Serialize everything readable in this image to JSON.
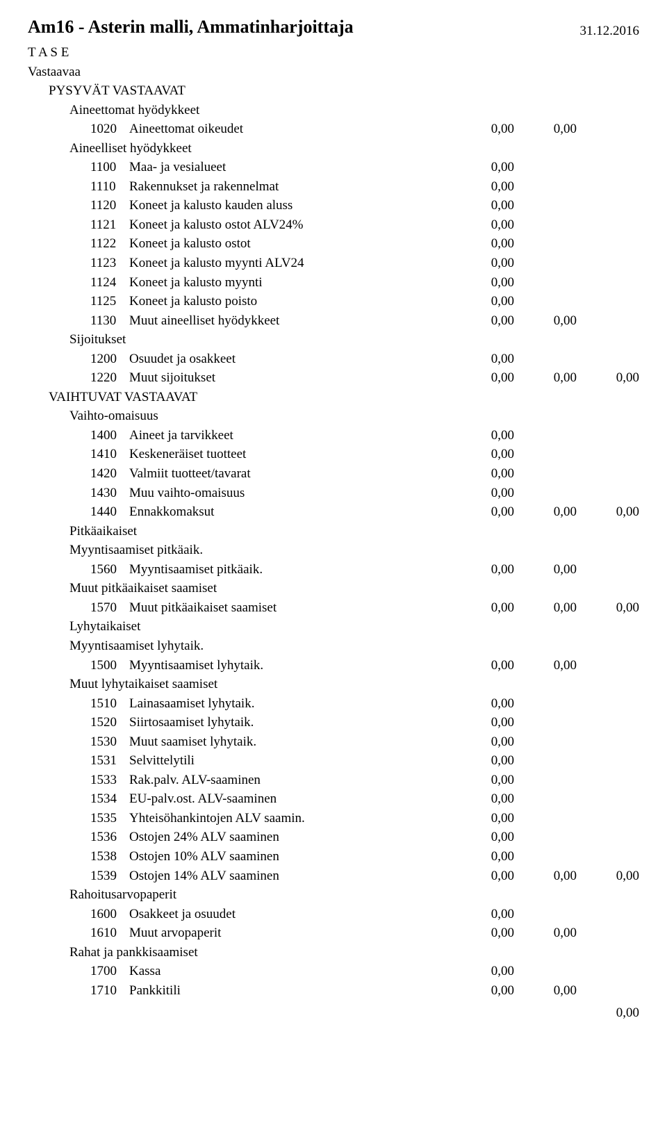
{
  "title": "Am16 - Asterin malli, Ammatinharjoittaja",
  "date": "31.12.2016",
  "zero": "0,00",
  "rows": [
    {
      "level": 0,
      "label": "T A S E"
    },
    {
      "level": 0,
      "label": "Vastaavaa"
    },
    {
      "level": 1,
      "label": "PYSYVÄT VASTAAVAT"
    },
    {
      "level": 2,
      "label": "Aineettomat hyödykkeet"
    },
    {
      "level": 3,
      "code": "1020",
      "label": "Aineettomat oikeudet",
      "vals": 2
    },
    {
      "level": 2,
      "label": "Aineelliset hyödykkeet"
    },
    {
      "level": 3,
      "code": "1100",
      "label": "Maa- ja vesialueet",
      "vals": 1
    },
    {
      "level": 3,
      "code": "1110",
      "label": "Rakennukset ja rakennelmat",
      "vals": 1
    },
    {
      "level": 3,
      "code": "1120",
      "label": "Koneet ja kalusto kauden aluss",
      "vals": 1
    },
    {
      "level": 3,
      "code": "1121",
      "label": "Koneet ja kalusto ostot ALV24%",
      "vals": 1
    },
    {
      "level": 3,
      "code": "1122",
      "label": "Koneet ja kalusto ostot",
      "vals": 1
    },
    {
      "level": 3,
      "code": "1123",
      "label": "Koneet ja kalusto myynti ALV24",
      "vals": 1
    },
    {
      "level": 3,
      "code": "1124",
      "label": "Koneet ja kalusto myynti",
      "vals": 1
    },
    {
      "level": 3,
      "code": "1125",
      "label": "Koneet ja kalusto poisto",
      "vals": 1
    },
    {
      "level": 3,
      "code": "1130",
      "label": "Muut aineelliset hyödykkeet",
      "vals": 2
    },
    {
      "level": 2,
      "label": "Sijoitukset"
    },
    {
      "level": 3,
      "code": "1200",
      "label": "Osuudet ja osakkeet",
      "vals": 1
    },
    {
      "level": 3,
      "code": "1220",
      "label": "Muut sijoitukset",
      "vals": 3
    },
    {
      "level": 1,
      "label": "VAIHTUVAT VASTAAVAT"
    },
    {
      "level": 2,
      "label": "Vaihto-omaisuus"
    },
    {
      "level": 3,
      "code": "1400",
      "label": "Aineet ja tarvikkeet",
      "vals": 1
    },
    {
      "level": 3,
      "code": "1410",
      "label": "Keskeneräiset tuotteet",
      "vals": 1
    },
    {
      "level": 3,
      "code": "1420",
      "label": "Valmiit tuotteet/tavarat",
      "vals": 1
    },
    {
      "level": 3,
      "code": "1430",
      "label": "Muu vaihto-omaisuus",
      "vals": 1
    },
    {
      "level": 3,
      "code": "1440",
      "label": "Ennakkomaksut",
      "vals": 3
    },
    {
      "level": 2,
      "label": "Pitkäaikaiset"
    },
    {
      "level": 2,
      "label": "Myyntisaamiset pitkäaik."
    },
    {
      "level": 3,
      "code": "1560",
      "label": "Myyntisaamiset pitkäaik.",
      "vals": 2
    },
    {
      "level": 2,
      "label": "Muut pitkäaikaiset saamiset"
    },
    {
      "level": 3,
      "code": "1570",
      "label": "Muut pitkäaikaiset saamiset",
      "vals": 3
    },
    {
      "level": 2,
      "label": "Lyhytaikaiset"
    },
    {
      "level": 2,
      "label": "Myyntisaamiset lyhytaik."
    },
    {
      "level": 3,
      "code": "1500",
      "label": "Myyntisaamiset lyhytaik.",
      "vals": 2
    },
    {
      "level": 2,
      "label": "Muut lyhytaikaiset saamiset"
    },
    {
      "level": 3,
      "code": "1510",
      "label": "Lainasaamiset lyhytaik.",
      "vals": 1
    },
    {
      "level": 3,
      "code": "1520",
      "label": "Siirtosaamiset lyhytaik.",
      "vals": 1
    },
    {
      "level": 3,
      "code": "1530",
      "label": "Muut saamiset lyhytaik.",
      "vals": 1
    },
    {
      "level": 3,
      "code": "1531",
      "label": "Selvittelytili",
      "vals": 1
    },
    {
      "level": 3,
      "code": "1533",
      "label": "Rak.palv. ALV-saaminen",
      "vals": 1
    },
    {
      "level": 3,
      "code": "1534",
      "label": "EU-palv.ost. ALV-saaminen",
      "vals": 1
    },
    {
      "level": 3,
      "code": "1535",
      "label": "Yhteisöhankintojen ALV saamin.",
      "vals": 1
    },
    {
      "level": 3,
      "code": "1536",
      "label": "Ostojen 24% ALV saaminen",
      "vals": 1
    },
    {
      "level": 3,
      "code": "1538",
      "label": "Ostojen 10% ALV saaminen",
      "vals": 1
    },
    {
      "level": 3,
      "code": "1539",
      "label": "Ostojen 14% ALV saaminen",
      "vals": 3
    },
    {
      "level": 2,
      "label": "Rahoitusarvopaperit"
    },
    {
      "level": 3,
      "code": "1600",
      "label": "Osakkeet ja osuudet",
      "vals": 1
    },
    {
      "level": 3,
      "code": "1610",
      "label": "Muut arvopaperit",
      "vals": 2
    },
    {
      "level": 2,
      "label": "Rahat ja pankkisaamiset"
    },
    {
      "level": 3,
      "code": "1700",
      "label": "Kassa",
      "vals": 1
    },
    {
      "level": 3,
      "code": "1710",
      "label": "Pankkitili",
      "vals": 2
    }
  ],
  "bottom_total": "0,00"
}
